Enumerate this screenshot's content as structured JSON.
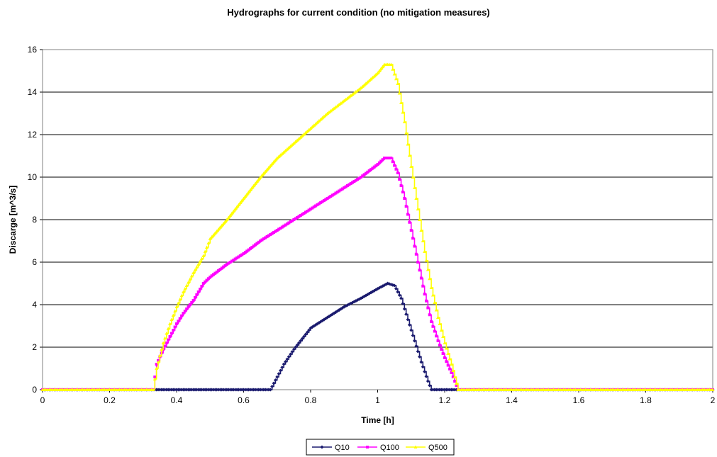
{
  "chart_data": {
    "type": "line",
    "title": "Hydrographs for current condition (no mitigation measures)",
    "xlabel": "Time [h]",
    "ylabel": "Discarge [m^3/s]",
    "xlim": [
      0,
      2
    ],
    "ylim": [
      0,
      16
    ],
    "xticks": [
      "0",
      "0.2",
      "0.4",
      "0.6",
      "0.8",
      "1",
      "1.2",
      "1.4",
      "1.6",
      "1.8",
      "2"
    ],
    "yticks": [
      "0",
      "2",
      "4",
      "6",
      "8",
      "10",
      "12",
      "14",
      "16"
    ],
    "grid": "horizontal",
    "legend_position": "bottom",
    "series": [
      {
        "name": "Q10",
        "color": "#1a1a6e",
        "marker": "diamond",
        "points": [
          [
            0,
            0
          ],
          [
            0.68,
            0
          ],
          [
            0.7,
            0.6
          ],
          [
            0.72,
            1.2
          ],
          [
            0.75,
            1.9
          ],
          [
            0.78,
            2.5
          ],
          [
            0.8,
            2.9
          ],
          [
            0.85,
            3.4
          ],
          [
            0.9,
            3.9
          ],
          [
            0.95,
            4.3
          ],
          [
            1.0,
            4.75
          ],
          [
            1.03,
            5.0
          ],
          [
            1.05,
            4.9
          ],
          [
            1.07,
            4.3
          ],
          [
            1.09,
            3.3
          ],
          [
            1.11,
            2.3
          ],
          [
            1.13,
            1.3
          ],
          [
            1.15,
            0.4
          ],
          [
            1.16,
            0
          ],
          [
            2,
            0
          ]
        ]
      },
      {
        "name": "Q100",
        "color": "#ff00ff",
        "marker": "square",
        "points": [
          [
            0,
            0
          ],
          [
            0.33,
            0
          ],
          [
            0.34,
            1.2
          ],
          [
            0.36,
            1.9
          ],
          [
            0.38,
            2.5
          ],
          [
            0.4,
            3.1
          ],
          [
            0.42,
            3.6
          ],
          [
            0.45,
            4.2
          ],
          [
            0.48,
            5.0
          ],
          [
            0.5,
            5.3
          ],
          [
            0.55,
            5.9
          ],
          [
            0.6,
            6.4
          ],
          [
            0.65,
            7.0
          ],
          [
            0.7,
            7.5
          ],
          [
            0.75,
            8.0
          ],
          [
            0.8,
            8.5
          ],
          [
            0.85,
            9.0
          ],
          [
            0.9,
            9.5
          ],
          [
            0.95,
            10.0
          ],
          [
            1.0,
            10.6
          ],
          [
            1.02,
            10.9
          ],
          [
            1.04,
            10.9
          ],
          [
            1.06,
            10.2
          ],
          [
            1.08,
            9.0
          ],
          [
            1.1,
            7.5
          ],
          [
            1.12,
            6.0
          ],
          [
            1.14,
            4.5
          ],
          [
            1.16,
            3.2
          ],
          [
            1.18,
            2.3
          ],
          [
            1.2,
            1.5
          ],
          [
            1.22,
            0.8
          ],
          [
            1.24,
            0
          ],
          [
            2,
            0
          ]
        ]
      },
      {
        "name": "Q500",
        "color": "#ffff00",
        "marker": "triangle",
        "points": [
          [
            0,
            0
          ],
          [
            0.33,
            0
          ],
          [
            0.34,
            1.0
          ],
          [
            0.36,
            2.2
          ],
          [
            0.38,
            3.1
          ],
          [
            0.4,
            3.9
          ],
          [
            0.42,
            4.6
          ],
          [
            0.45,
            5.5
          ],
          [
            0.48,
            6.3
          ],
          [
            0.5,
            7.1
          ],
          [
            0.55,
            8.0
          ],
          [
            0.6,
            9.0
          ],
          [
            0.65,
            10.0
          ],
          [
            0.7,
            10.9
          ],
          [
            0.75,
            11.6
          ],
          [
            0.8,
            12.3
          ],
          [
            0.85,
            13.0
          ],
          [
            0.9,
            13.6
          ],
          [
            0.95,
            14.2
          ],
          [
            1.0,
            14.9
          ],
          [
            1.02,
            15.3
          ],
          [
            1.04,
            15.3
          ],
          [
            1.06,
            14.4
          ],
          [
            1.08,
            12.6
          ],
          [
            1.1,
            10.5
          ],
          [
            1.12,
            8.5
          ],
          [
            1.14,
            6.5
          ],
          [
            1.16,
            4.8
          ],
          [
            1.18,
            3.4
          ],
          [
            1.2,
            2.2
          ],
          [
            1.22,
            1.2
          ],
          [
            1.24,
            0
          ],
          [
            2,
            0
          ]
        ]
      }
    ]
  }
}
